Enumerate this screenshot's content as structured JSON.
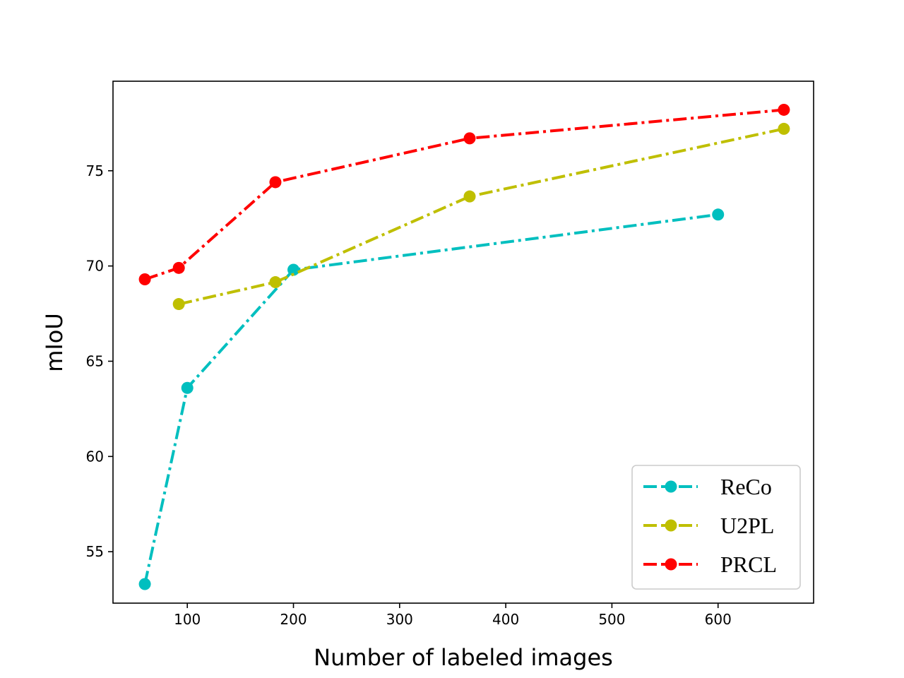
{
  "chart_data": {
    "type": "line",
    "title": "",
    "xlabel": "Number of labeled images",
    "ylabel": "mIoU",
    "xlim": [
      30,
      690
    ],
    "ylim": [
      52.3,
      79.7
    ],
    "xticks": [
      100,
      200,
      300,
      400,
      500,
      600
    ],
    "yticks": [
      55,
      60,
      65,
      70,
      75
    ],
    "grid": false,
    "legend_position": "lower-right",
    "series": [
      {
        "name": "ReCo",
        "color": "#00bfbf",
        "line_style": "dash-dot",
        "marker": "circle",
        "x": [
          60,
          100,
          200,
          600
        ],
        "y": [
          53.3,
          63.6,
          69.8,
          72.7
        ]
      },
      {
        "name": "U2PL",
        "color": "#bfbf00",
        "line_style": "dash-dot",
        "marker": "circle",
        "x": [
          92,
          183,
          366,
          662
        ],
        "y": [
          68.0,
          69.15,
          73.65,
          77.2
        ]
      },
      {
        "name": "PRCL",
        "color": "#ff0000",
        "line_style": "dash-dot",
        "marker": "circle",
        "x": [
          60,
          92,
          183,
          366,
          662
        ],
        "y": [
          69.3,
          69.9,
          74.4,
          76.7,
          78.2
        ]
      }
    ]
  }
}
